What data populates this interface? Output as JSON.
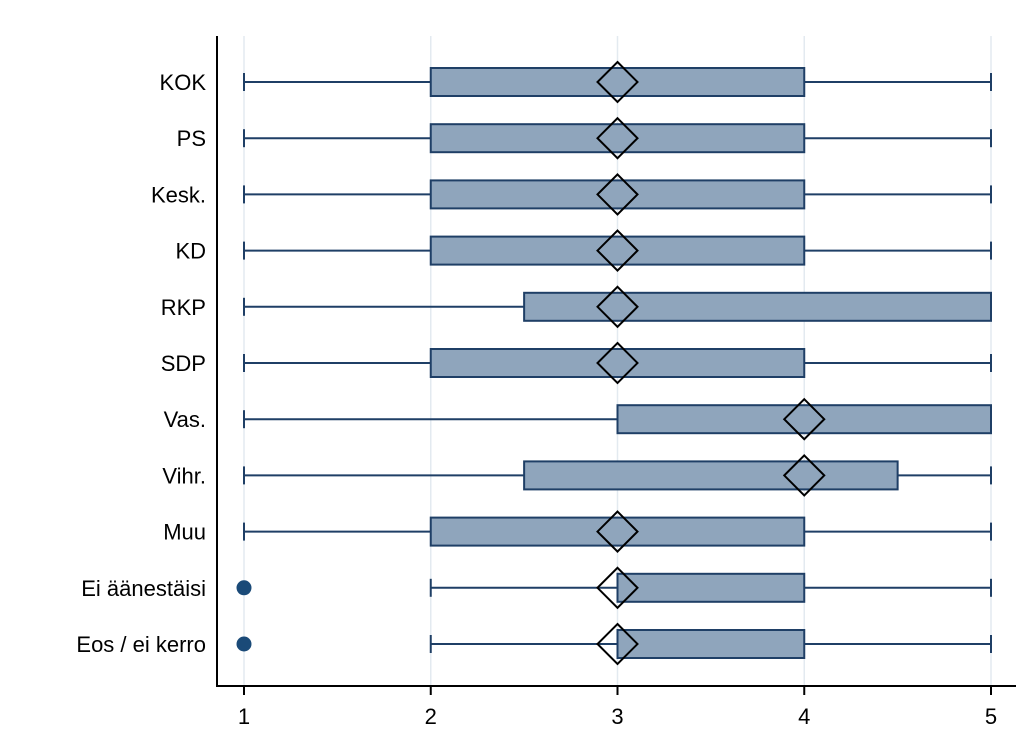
{
  "chart_data": {
    "type": "box",
    "categories": [
      "KOK",
      "PS",
      "Kesk.",
      "KD",
      "RKP",
      "SDP",
      "Vas.",
      "Vihr.",
      "Muu",
      "Ei äänestäisi",
      "Eos / ei kerro"
    ],
    "boxes": [
      {
        "category": "KOK",
        "whisker_low": 1,
        "q1": 2,
        "q3": 4,
        "whisker_high": 5,
        "median": 3,
        "outliers": []
      },
      {
        "category": "PS",
        "whisker_low": 1,
        "q1": 2,
        "q3": 4,
        "whisker_high": 5,
        "median": 3,
        "outliers": []
      },
      {
        "category": "Kesk.",
        "whisker_low": 1,
        "q1": 2,
        "q3": 4,
        "whisker_high": 5,
        "median": 3,
        "outliers": []
      },
      {
        "category": "KD",
        "whisker_low": 1,
        "q1": 2,
        "q3": 4,
        "whisker_high": 5,
        "median": 3,
        "outliers": []
      },
      {
        "category": "RKP",
        "whisker_low": 1,
        "q1": 2.5,
        "q3": 5,
        "whisker_high": 5,
        "median": 3,
        "outliers": []
      },
      {
        "category": "SDP",
        "whisker_low": 1,
        "q1": 2,
        "q3": 4,
        "whisker_high": 5,
        "median": 3,
        "outliers": []
      },
      {
        "category": "Vas.",
        "whisker_low": 1,
        "q1": 3,
        "q3": 5,
        "whisker_high": 5,
        "median": 4,
        "outliers": []
      },
      {
        "category": "Vihr.",
        "whisker_low": 1,
        "q1": 2.5,
        "q3": 4.5,
        "whisker_high": 5,
        "median": 4,
        "outliers": []
      },
      {
        "category": "Muu",
        "whisker_low": 1,
        "q1": 2,
        "q3": 4,
        "whisker_high": 5,
        "median": 3,
        "outliers": []
      },
      {
        "category": "Ei äänestäisi",
        "whisker_low": 2,
        "q1": 3,
        "q3": 4,
        "whisker_high": 5,
        "median": 3,
        "outliers": [
          1
        ]
      },
      {
        "category": "Eos / ei kerro",
        "whisker_low": 2,
        "q1": 3,
        "q3": 4,
        "whisker_high": 5,
        "median": 3,
        "outliers": [
          1
        ]
      }
    ],
    "x_ticks": [
      1,
      2,
      3,
      4,
      5
    ],
    "xlim": [
      0.85,
      5.15
    ],
    "median_marker": "diamond",
    "orientation": "horizontal",
    "grid": true,
    "title": "",
    "xlabel": "",
    "ylabel": ""
  },
  "colors": {
    "box_fill": "#8fa5bc",
    "box_stroke": "#1f3f66",
    "whisker": "#1f3f66",
    "outlier": "#1a4a78",
    "median_marker": "#000000",
    "grid": "#e3eaf0",
    "axis": "#000000"
  }
}
